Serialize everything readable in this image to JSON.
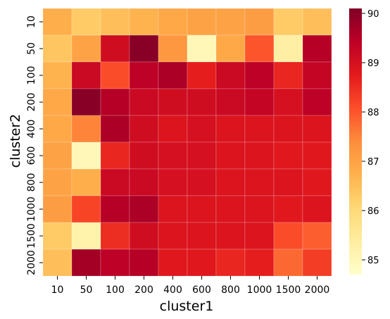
{
  "chart_data": {
    "type": "heatmap",
    "title": "",
    "xlabel": "cluster1",
    "ylabel": "cluster2",
    "x_categories": [
      "10",
      "50",
      "100",
      "200",
      "400",
      "600",
      "800",
      "1000",
      "1500",
      "2000"
    ],
    "y_categories": [
      "10",
      "50",
      "100",
      "200",
      "400",
      "600",
      "800",
      "1000",
      "1500",
      "2000"
    ],
    "values": [
      [
        86.8,
        86.3,
        86.5,
        86.7,
        86.9,
        87.0,
        87.0,
        87.1,
        86.3,
        86.5
      ],
      [
        86.4,
        87.0,
        89.1,
        90.0,
        87.2,
        85.0,
        86.9,
        88.0,
        85.3,
        89.5
      ],
      [
        86.7,
        89.2,
        88.1,
        89.4,
        89.6,
        88.7,
        89.2,
        89.4,
        88.6,
        89.3
      ],
      [
        86.9,
        90.0,
        89.5,
        89.2,
        89.1,
        89.1,
        89.2,
        89.3,
        89.0,
        89.4
      ],
      [
        86.9,
        87.5,
        89.6,
        89.1,
        88.9,
        89.0,
        88.9,
        88.9,
        88.9,
        88.9
      ],
      [
        87.0,
        85.0,
        88.6,
        89.1,
        89.0,
        89.0,
        88.9,
        88.9,
        88.8,
        88.8
      ],
      [
        87.0,
        86.8,
        89.2,
        89.2,
        89.0,
        89.0,
        88.9,
        88.9,
        88.9,
        88.8
      ],
      [
        87.1,
        88.2,
        89.5,
        89.6,
        88.9,
        88.9,
        88.9,
        88.9,
        88.8,
        88.9
      ],
      [
        86.3,
        85.2,
        88.5,
        89.1,
        88.9,
        88.9,
        88.9,
        88.9,
        88.1,
        87.9
      ],
      [
        86.5,
        89.7,
        89.4,
        89.5,
        88.8,
        88.8,
        88.6,
        88.7,
        87.8,
        88.3
      ]
    ],
    "vmin": 84.7,
    "vmax": 90.1,
    "colorbar_ticks": [
      85,
      86,
      87,
      88,
      89,
      90
    ],
    "colormap": "YlOrRd",
    "colormap_stops": [
      "#ffffcc",
      "#ffeda0",
      "#fed976",
      "#feb24c",
      "#fd8d3c",
      "#fc4e2a",
      "#e31a1c",
      "#bd0026",
      "#800026"
    ],
    "legend": "colorbar-right",
    "grid": false
  }
}
